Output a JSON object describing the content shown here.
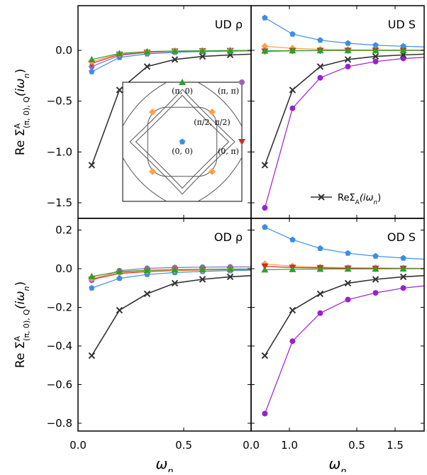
{
  "chart_data": {
    "type": "line",
    "shared": {
      "x_label": "ω",
      "x_sub": "n",
      "y_label_main": "Re Σ",
      "y_label_sup": "A",
      "y_label_sub": "(π, 0), Q",
      "y_label_arg": "(iω",
      "y_label_arg_sub": "n",
      "y_label_arg_end": ")",
      "xlim": [
        0.0,
        1.7
      ],
      "x_ticks": [
        "0.0",
        "0.5",
        "1.0",
        "1.5"
      ],
      "omega_n": [
        0.065,
        0.196,
        0.327,
        0.458,
        0.589,
        0.72,
        0.851,
        0.982,
        1.113,
        1.244,
        1.374,
        1.505,
        1.636
      ],
      "series_colors": {
        "pi0": "#2ca02c",
        "pipi": "#9467bd",
        "halfpi": "#ffa04a",
        "zero": "#3a8ee6",
        "zeropi": "#d62728",
        "local": "#333333",
        "sdiag": "#9b1fd0"
      }
    },
    "panels": [
      {
        "title": "UD ρ",
        "ylim": [
          -1.6,
          0.4
        ],
        "y_ticks": [
          "0.0",
          "−0.5",
          "−1.0",
          "−1.5"
        ],
        "series": [
          {
            "key": "local",
            "values": [
              -1.13,
              -0.39,
              -0.16,
              -0.09,
              -0.06,
              -0.045,
              -0.035,
              -0.028,
              -0.022,
              -0.018,
              -0.015,
              -0.012,
              -0.01
            ]
          },
          {
            "key": "zero",
            "values": [
              -0.21,
              -0.07,
              -0.035,
              -0.02,
              -0.012,
              -0.008,
              -0.006,
              -0.004,
              -0.003,
              -0.002,
              -0.002,
              -0.001,
              -0.001
            ]
          },
          {
            "key": "pipi",
            "values": [
              -0.16,
              -0.05,
              -0.02,
              -0.01,
              -0.005,
              -0.002,
              0.0,
              0.001,
              0.002,
              0.002,
              0.003,
              0.003,
              0.003
            ]
          },
          {
            "key": "zeropi",
            "values": [
              -0.13,
              -0.04,
              -0.02,
              -0.01,
              -0.006,
              -0.004,
              -0.003,
              -0.002,
              -0.001,
              -0.001,
              -0.001,
              0.0,
              0.0
            ]
          },
          {
            "key": "halfpi",
            "values": [
              -0.11,
              -0.035,
              -0.015,
              -0.008,
              -0.005,
              -0.003,
              -0.002,
              -0.001,
              -0.001,
              0.0,
              0.0,
              0.0,
              0.0
            ]
          },
          {
            "key": "pi0",
            "values": [
              -0.09,
              -0.03,
              -0.012,
              -0.006,
              -0.004,
              -0.002,
              -0.001,
              -0.001,
              0.0,
              0.0,
              0.0,
              0.0,
              0.0
            ]
          }
        ]
      },
      {
        "title": "UD S",
        "ylim": [
          -1.6,
          0.4
        ],
        "y_ticks": [],
        "series": [
          {
            "key": "sdiag",
            "values": [
              -1.55,
              -0.57,
              -0.27,
              -0.16,
              -0.11,
              -0.08,
              -0.065,
              -0.052,
              -0.045,
              -0.04,
              -0.036,
              -0.033,
              -0.03
            ]
          },
          {
            "key": "local",
            "values": [
              -1.13,
              -0.39,
              -0.16,
              -0.09,
              -0.06,
              -0.045,
              -0.035,
              -0.028,
              -0.022,
              -0.018,
              -0.015,
              -0.012,
              -0.01
            ]
          },
          {
            "key": "zero",
            "values": [
              0.32,
              0.16,
              0.1,
              0.07,
              0.05,
              0.04,
              0.032,
              0.027,
              0.023,
              0.02,
              0.018,
              0.016,
              0.015
            ]
          },
          {
            "key": "halfpi",
            "values": [
              0.04,
              0.02,
              0.01,
              0.006,
              0.004,
              0.003,
              0.002,
              0.002,
              0.001,
              0.001,
              0.001,
              0.001,
              0.001
            ]
          },
          {
            "key": "zeropi",
            "values": [
              -0.01,
              -0.005,
              -0.003,
              -0.002,
              -0.001,
              -0.001,
              0.0,
              0.0,
              0.0,
              0.0,
              0.0,
              0.0,
              0.0
            ]
          },
          {
            "key": "pi0",
            "values": [
              -0.005,
              -0.003,
              -0.002,
              -0.001,
              -0.001,
              0.0,
              0.0,
              0.0,
              0.0,
              0.0,
              0.0,
              0.0,
              0.0
            ]
          }
        ]
      },
      {
        "title": "OD ρ",
        "ylim": [
          -0.85,
          0.25
        ],
        "y_ticks": [
          "0.2",
          "0.0",
          "−0.2",
          "−0.4",
          "−0.6",
          "−0.8"
        ],
        "series": [
          {
            "key": "local",
            "values": [
              -0.45,
              -0.215,
              -0.13,
              -0.075,
              -0.055,
              -0.042,
              -0.034,
              -0.028,
              -0.023,
              -0.02,
              -0.017,
              -0.015,
              -0.013
            ]
          },
          {
            "key": "zero",
            "values": [
              -0.1,
              -0.05,
              -0.03,
              -0.02,
              -0.014,
              -0.01,
              -0.008,
              -0.006,
              -0.005,
              -0.004,
              -0.003,
              -0.003,
              -0.002
            ]
          },
          {
            "key": "pipi",
            "values": [
              -0.06,
              -0.01,
              0.002,
              0.006,
              0.008,
              0.009,
              0.009,
              0.009,
              0.009,
              0.008,
              0.008,
              0.008,
              0.008
            ]
          },
          {
            "key": "zeropi",
            "values": [
              -0.055,
              -0.025,
              -0.015,
              -0.01,
              -0.007,
              -0.005,
              -0.004,
              -0.003,
              -0.002,
              -0.002,
              -0.001,
              -0.001,
              -0.001
            ]
          },
          {
            "key": "halfpi",
            "values": [
              -0.05,
              -0.02,
              -0.012,
              -0.008,
              -0.006,
              -0.004,
              -0.003,
              -0.002,
              -0.002,
              -0.001,
              -0.001,
              -0.001,
              -0.001
            ]
          },
          {
            "key": "pi0",
            "values": [
              -0.04,
              -0.015,
              -0.008,
              -0.005,
              -0.003,
              -0.002,
              -0.002,
              -0.001,
              -0.001,
              -0.001,
              0.0,
              0.0,
              0.0
            ]
          }
        ]
      },
      {
        "title": "OD S",
        "ylim": [
          -0.85,
          0.25
        ],
        "y_ticks": [],
        "series": [
          {
            "key": "sdiag",
            "values": [
              -0.75,
              -0.375,
              -0.23,
              -0.16,
              -0.125,
              -0.1,
              -0.085,
              -0.075,
              -0.065,
              -0.058,
              -0.052,
              -0.047,
              -0.043
            ]
          },
          {
            "key": "local",
            "values": [
              -0.45,
              -0.215,
              -0.13,
              -0.075,
              -0.055,
              -0.042,
              -0.034,
              -0.028,
              -0.023,
              -0.02,
              -0.017,
              -0.015,
              -0.013
            ]
          },
          {
            "key": "zero",
            "values": [
              0.215,
              0.15,
              0.105,
              0.08,
              0.065,
              0.055,
              0.047,
              0.042,
              0.038,
              0.035,
              0.032,
              0.03,
              0.028
            ]
          },
          {
            "key": "halfpi",
            "values": [
              0.025,
              0.013,
              0.008,
              0.005,
              0.004,
              0.003,
              0.002,
              0.002,
              0.001,
              0.001,
              0.001,
              0.001,
              0.001
            ]
          },
          {
            "key": "zeropi",
            "values": [
              0.012,
              0.006,
              0.004,
              0.002,
              0.001,
              0.001,
              0.0,
              0.0,
              0.0,
              0.0,
              0.0,
              0.0,
              0.0
            ]
          },
          {
            "key": "pi0",
            "values": [
              -0.005,
              -0.003,
              -0.002,
              -0.001,
              -0.001,
              0.0,
              0.0,
              0.0,
              0.0,
              0.0,
              0.0,
              0.0,
              0.0
            ]
          }
        ]
      }
    ],
    "legend": {
      "label": "ReΣ",
      "sub": "A",
      "arg": "(iω",
      "arg_sub": "n",
      "arg_end": ")",
      "placement": "bottom-right of UD S panel"
    },
    "inset": {
      "labels": [
        "(π, 0)",
        "(π, π)",
        "(π/2, π/2)",
        "(0, 0)",
        "(0, π)"
      ]
    }
  }
}
